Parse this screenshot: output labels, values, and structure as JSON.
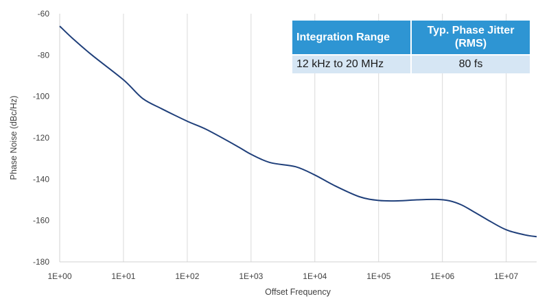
{
  "chart_data": {
    "type": "line",
    "title": "",
    "xlabel": "Offset Frequency",
    "ylabel": "Phase Noise (dBc/Hz)",
    "x_scale": "log",
    "xlim": [
      1,
      30000000
    ],
    "ylim": [
      -180,
      -60
    ],
    "x_ticks": [
      "1E+00",
      "1E+01",
      "1E+02",
      "1E+03",
      "1E+04",
      "1E+05",
      "1E+06",
      "1E+07"
    ],
    "y_ticks": [
      "-60",
      "-80",
      "-100",
      "-120",
      "-140",
      "-160",
      "-180"
    ],
    "grid": "vertical",
    "line_color": "#1f3f7a",
    "series": [
      {
        "x": [
          1,
          1.6,
          3.2,
          10,
          20,
          40,
          100,
          200,
          600,
          1000,
          2000,
          5000,
          10000,
          20000,
          50000,
          100000,
          200000,
          400000,
          800000,
          1300000,
          2000000,
          3000000,
          5000000,
          10000000,
          20000000,
          30000000
        ],
        "y": [
          -66,
          -72,
          -80,
          -92,
          -101,
          -106,
          -112,
          -116,
          -124,
          -128,
          -132,
          -134,
          -138,
          -143,
          -148.5,
          -150.3,
          -150.5,
          -150,
          -149.8,
          -150.5,
          -152.5,
          -155.5,
          -159.5,
          -164.5,
          -167,
          -167.8
        ]
      }
    ]
  },
  "table": {
    "header": [
      "Integration Range",
      "Typ. Phase Jitter (RMS)"
    ],
    "row": [
      "12 kHz to 20 MHz",
      "80 fs"
    ],
    "header_color": "#2e95d3",
    "row_color": "#d6e6f4"
  }
}
